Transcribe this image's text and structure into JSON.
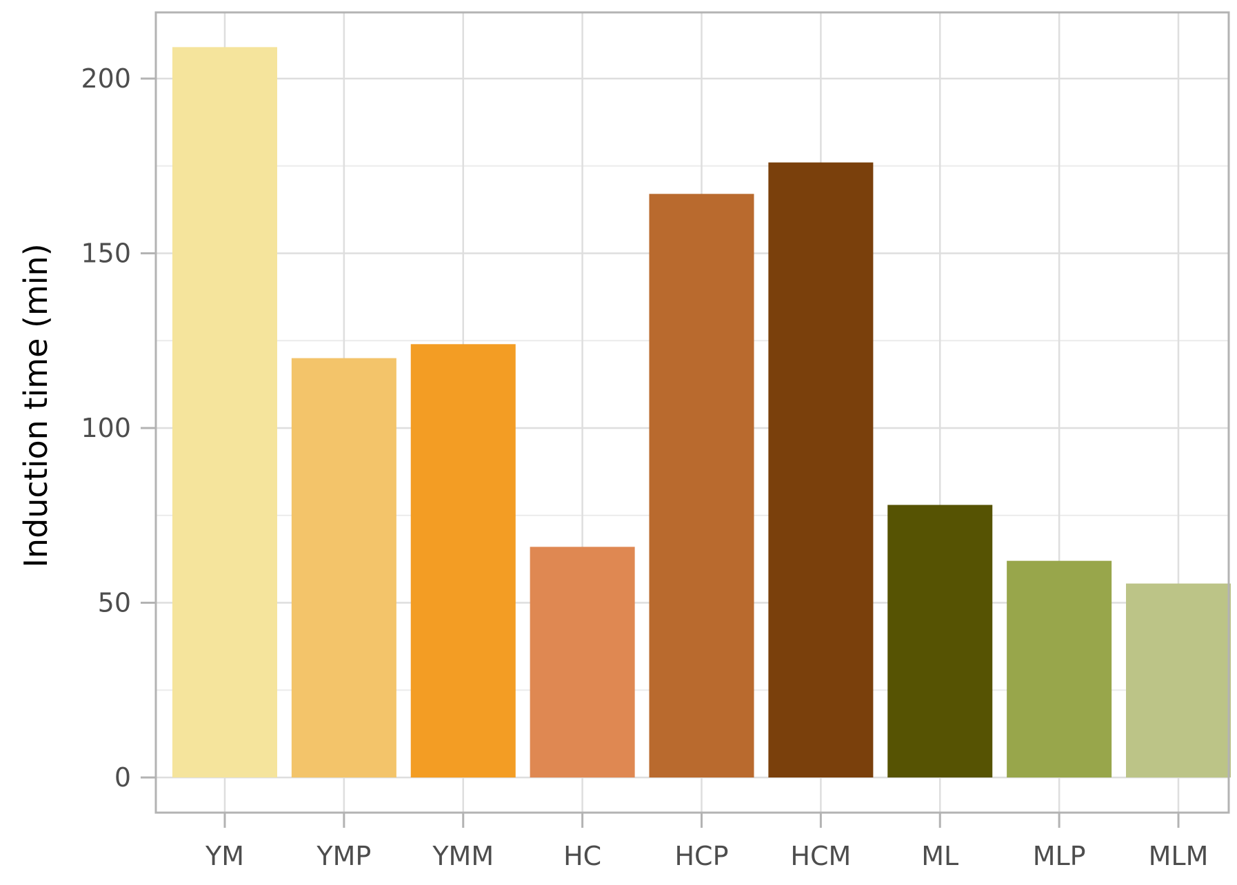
{
  "chart_data": {
    "type": "bar",
    "categories": [
      "YM",
      "YMP",
      "YMM",
      "HC",
      "HCP",
      "HCM",
      "ML",
      "MLP",
      "MLM"
    ],
    "values": [
      209,
      120,
      124,
      66,
      167,
      176,
      78,
      62,
      55.5
    ],
    "colors": [
      "#F5E49C",
      "#F3C46A",
      "#F39D24",
      "#DF8852",
      "#B96A2E",
      "#7A400C",
      "#565303",
      "#98A64B",
      "#BCC487"
    ],
    "ylabel": "Induction time (min)",
    "xlabel": "",
    "ylim": [
      -10,
      219
    ],
    "yticks": [
      0,
      50,
      100,
      150,
      200
    ],
    "grid": true,
    "legend": "none"
  }
}
